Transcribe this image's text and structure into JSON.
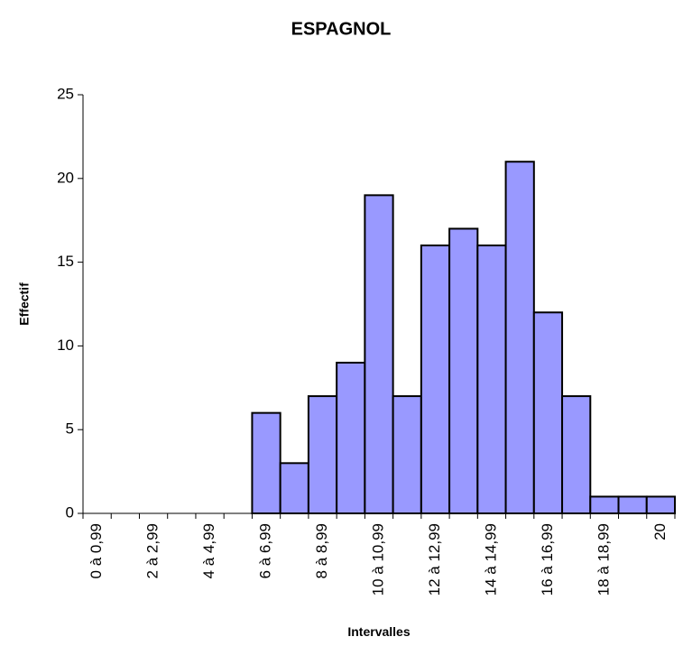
{
  "chart_data": {
    "type": "bar",
    "title": "ESPAGNOL",
    "x_label": "Intervalles",
    "y_label": "Effectif",
    "categories": [
      "0 à 0,99",
      null,
      "2 à 2,99",
      null,
      "4 à 4,99",
      null,
      "6 à 6,99",
      null,
      "8 à 8,99",
      null,
      "10 à 10,99",
      null,
      "12 à 12,99",
      null,
      "14 à 14,99",
      null,
      "16 à 16,99",
      null,
      "18 à 18,99",
      null,
      "20"
    ],
    "values": [
      0,
      0,
      0,
      0,
      0,
      0,
      6,
      3,
      7,
      9,
      19,
      7,
      16,
      17,
      16,
      21,
      12,
      7,
      1,
      1,
      1
    ],
    "color": "#9999ff",
    "ylim": [
      0,
      25
    ],
    "yticks": [
      0,
      5,
      10,
      15,
      20,
      25
    ],
    "grid": false
  }
}
